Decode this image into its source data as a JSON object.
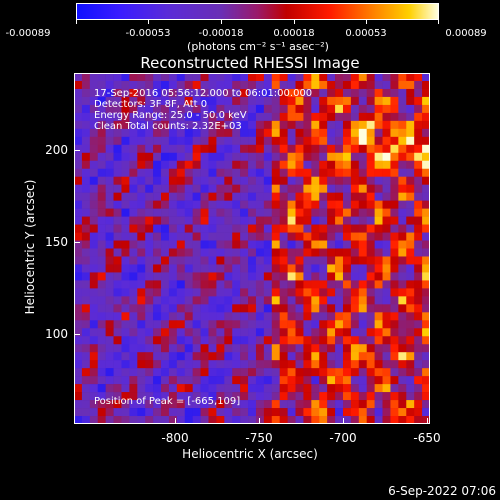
{
  "colorbar": {
    "ticks": [
      "-0.00089",
      "-0.00053",
      "-0.00018",
      "0.00018",
      "0.00053",
      "0.00089"
    ],
    "units": "(photons cm⁻² s⁻¹ asec⁻²)"
  },
  "title": "Reconstructed RHESSI Image",
  "annotations": {
    "time": "17-Sep-2016 05:56:12.000 to 06:01:00.000",
    "detectors": "Detectors: 3F 8F, Att 0",
    "energy": "Energy Range: 25.0 - 50.0 keV",
    "clean": "Clean     Total counts: 2.32E+03",
    "peak": "Position of Peak = [-665,109]"
  },
  "axes": {
    "xlabel": "Heliocentric X (arcsec)",
    "ylabel": "Heliocentric Y (arcsec)",
    "xticks": [
      "-800",
      "-750",
      "-700",
      "-650"
    ],
    "yticks": [
      "200",
      "150",
      "100"
    ]
  },
  "footer": {
    "timestamp": "6-Sep-2022 07:06"
  },
  "colors": {
    "background": "#000000",
    "low": "#1010ff",
    "mid": "#6a2fb5",
    "high": "#ff2000",
    "peak": "#ffffe0"
  }
}
